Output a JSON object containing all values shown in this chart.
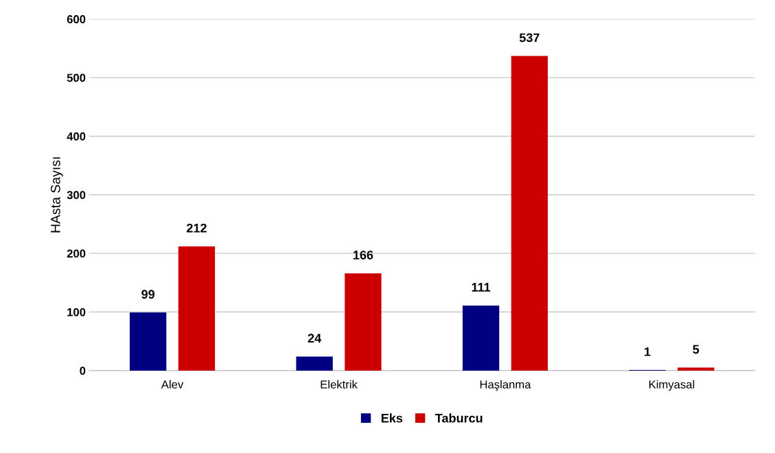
{
  "chart_data": {
    "type": "bar",
    "ylabel": "HAsta Sayısı",
    "categories": [
      "Alev",
      "Elektrik",
      "Haşlanma",
      "Kimyasal"
    ],
    "series": [
      {
        "name": "Eks",
        "color": "#000080",
        "values": [
          99,
          24,
          111,
          1
        ]
      },
      {
        "name": "Taburcu",
        "color": "#cc0000",
        "values": [
          212,
          166,
          537,
          5
        ]
      }
    ],
    "ylim": [
      0,
      600
    ],
    "yticks": [
      0,
      100,
      200,
      300,
      400,
      500,
      600
    ],
    "grid": "y",
    "legend": "bottom",
    "data_labels": true
  }
}
